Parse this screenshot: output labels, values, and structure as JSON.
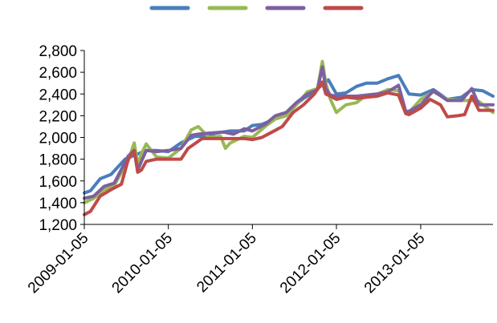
{
  "chart_data": {
    "type": "line",
    "title": "",
    "xlabel": "",
    "ylabel": "",
    "ylim": [
      1200,
      2800
    ],
    "yticks": [
      1200,
      1400,
      1600,
      1800,
      2000,
      2200,
      2400,
      2600,
      2800
    ],
    "ytick_labels": [
      "1,200",
      "1,400",
      "1,600",
      "1,800",
      "2,000",
      "2,200",
      "2,400",
      "2,600",
      "2,800"
    ],
    "xlim": [
      "2009-01-05",
      "2013-11-15"
    ],
    "xticks": [
      "2009-01-05",
      "2010-01-05",
      "2011-01-05",
      "2012-01-05",
      "2013-01-05"
    ],
    "grid": false,
    "legend": {
      "position": "top",
      "shows_names": false
    },
    "series": [
      {
        "color": "#4a7ebb",
        "x": [
          "2009-01-05",
          "2009-02-01",
          "2009-03-15",
          "2009-05-01",
          "2009-07-01",
          "2009-08-15",
          "2009-10-01",
          "2009-11-15",
          "2010-01-05",
          "2010-03-01",
          "2010-05-01",
          "2010-06-15",
          "2010-08-01",
          "2010-10-01",
          "2010-12-01",
          "2011-01-05",
          "2011-02-15",
          "2011-04-01",
          "2011-05-15",
          "2011-07-01",
          "2011-08-15",
          "2011-10-01",
          "2011-11-01",
          "2011-12-01",
          "2012-01-05",
          "2012-02-15",
          "2012-04-01",
          "2012-05-15",
          "2012-07-01",
          "2012-08-15",
          "2012-10-01",
          "2012-11-15",
          "2013-01-05",
          "2013-03-01",
          "2013-05-01",
          "2013-07-01",
          "2013-08-15",
          "2013-10-01",
          "2013-11-15"
        ],
        "y": [
          1490,
          1510,
          1620,
          1660,
          1800,
          1840,
          1880,
          1880,
          1870,
          1950,
          2010,
          2010,
          2040,
          2060,
          2060,
          2110,
          2120,
          2160,
          2200,
          2280,
          2360,
          2420,
          2480,
          2530,
          2400,
          2410,
          2470,
          2500,
          2500,
          2540,
          2570,
          2400,
          2390,
          2440,
          2350,
          2370,
          2440,
          2430,
          2380
        ]
      },
      {
        "color": "#98b954",
        "x": [
          "2009-01-05",
          "2009-02-15",
          "2009-04-01",
          "2009-05-15",
          "2009-07-15",
          "2009-08-10",
          "2009-08-25",
          "2009-09-10",
          "2009-10-01",
          "2009-11-15",
          "2010-01-05",
          "2010-03-01",
          "2010-04-15",
          "2010-05-15",
          "2010-07-01",
          "2010-08-20",
          "2010-09-10",
          "2010-10-01",
          "2010-12-01",
          "2011-01-05",
          "2011-03-01",
          "2011-04-15",
          "2011-06-01",
          "2011-07-15",
          "2011-09-01",
          "2011-10-15",
          "2011-11-05",
          "2011-11-20",
          "2011-12-10",
          "2012-01-05",
          "2012-02-15",
          "2012-04-01",
          "2012-05-15",
          "2012-07-01",
          "2012-08-15",
          "2012-10-01",
          "2012-11-01",
          "2012-11-15",
          "2013-01-05",
          "2013-03-01",
          "2013-05-01",
          "2013-07-01",
          "2013-08-15",
          "2013-09-15",
          "2013-11-15"
        ],
        "y": [
          1400,
          1440,
          1520,
          1560,
          1790,
          1950,
          1750,
          1850,
          1940,
          1820,
          1810,
          1900,
          2070,
          2100,
          2000,
          2010,
          1900,
          1950,
          2010,
          2000,
          2100,
          2170,
          2200,
          2300,
          2420,
          2450,
          2700,
          2500,
          2350,
          2230,
          2300,
          2320,
          2390,
          2400,
          2440,
          2430,
          2230,
          2230,
          2350,
          2420,
          2350,
          2340,
          2340,
          2330,
          2230
        ]
      },
      {
        "color": "#7d60a0",
        "x": [
          "2009-01-05",
          "2009-02-15",
          "2009-04-01",
          "2009-05-15",
          "2009-07-15",
          "2009-08-10",
          "2009-08-25",
          "2009-09-10",
          "2009-10-01",
          "2009-11-15",
          "2010-01-05",
          "2010-03-01",
          "2010-04-15",
          "2010-05-15",
          "2010-07-01",
          "2010-09-01",
          "2010-10-15",
          "2010-12-01",
          "2011-01-05",
          "2011-03-01",
          "2011-04-15",
          "2011-06-01",
          "2011-07-15",
          "2011-09-01",
          "2011-10-15",
          "2011-11-05",
          "2011-11-20",
          "2011-12-10",
          "2012-01-05",
          "2012-02-15",
          "2012-04-01",
          "2012-05-15",
          "2012-07-01",
          "2012-08-15",
          "2012-10-01",
          "2012-11-01",
          "2012-11-15",
          "2013-01-05",
          "2013-03-01",
          "2013-05-01",
          "2013-07-01",
          "2013-08-15",
          "2013-09-15",
          "2013-11-15"
        ],
        "y": [
          1440,
          1460,
          1550,
          1580,
          1830,
          1880,
          1700,
          1780,
          1880,
          1870,
          1880,
          1900,
          2020,
          2030,
          2040,
          2050,
          2030,
          2080,
          2060,
          2120,
          2200,
          2230,
          2320,
          2400,
          2440,
          2650,
          2450,
          2390,
          2380,
          2380,
          2380,
          2390,
          2400,
          2420,
          2480,
          2240,
          2240,
          2300,
          2430,
          2340,
          2340,
          2450,
          2300,
          2300
        ]
      },
      {
        "color": "#be4b48",
        "x": [
          "2009-01-05",
          "2009-02-01",
          "2009-03-15",
          "2009-05-01",
          "2009-06-15",
          "2009-07-15",
          "2009-08-10",
          "2009-08-25",
          "2009-09-10",
          "2009-10-01",
          "2009-11-15",
          "2010-01-05",
          "2010-03-01",
          "2010-04-01",
          "2010-06-01",
          "2010-08-01",
          "2010-10-01",
          "2010-12-01",
          "2011-01-05",
          "2011-02-15",
          "2011-04-01",
          "2011-05-15",
          "2011-07-01",
          "2011-08-15",
          "2011-10-01",
          "2011-11-05",
          "2011-11-20",
          "2011-12-10",
          "2012-01-05",
          "2012-02-15",
          "2012-04-01",
          "2012-05-15",
          "2012-07-01",
          "2012-08-15",
          "2012-10-01",
          "2012-11-01",
          "2012-11-15",
          "2013-01-05",
          "2013-02-15",
          "2013-04-01",
          "2013-05-01",
          "2013-06-15",
          "2013-07-15",
          "2013-08-15",
          "2013-09-15",
          "2013-11-15"
        ],
        "y": [
          1290,
          1320,
          1460,
          1520,
          1570,
          1800,
          1880,
          1680,
          1700,
          1780,
          1800,
          1800,
          1800,
          1900,
          1990,
          1990,
          1990,
          1990,
          1980,
          2000,
          2050,
          2100,
          2230,
          2300,
          2400,
          2510,
          2400,
          2380,
          2350,
          2370,
          2360,
          2370,
          2380,
          2410,
          2390,
          2220,
          2210,
          2270,
          2350,
          2300,
          2190,
          2200,
          2210,
          2380,
          2250,
          2250
        ]
      }
    ]
  }
}
